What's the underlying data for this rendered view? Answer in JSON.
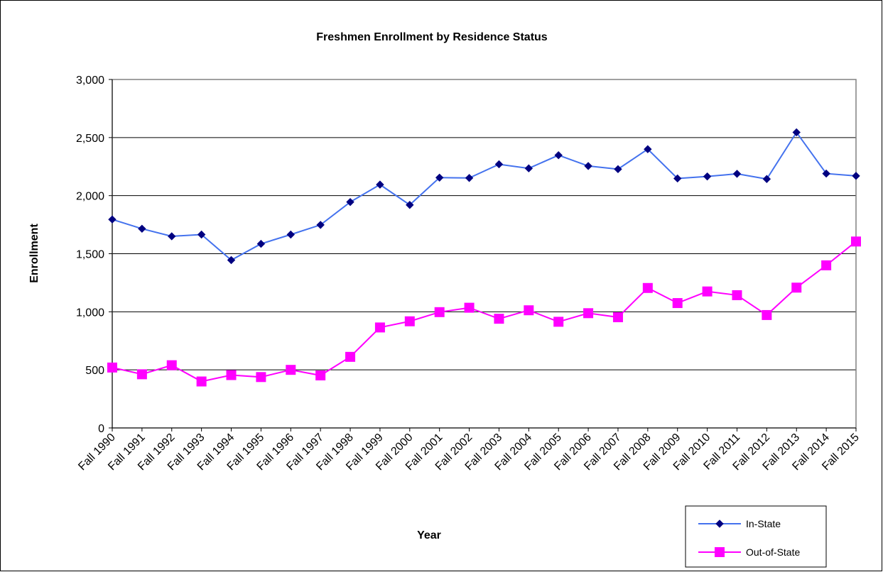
{
  "chart_data": {
    "type": "line",
    "title": "Freshmen Enrollment by Residence Status",
    "xlabel": "Year",
    "ylabel": "Enrollment",
    "ylim": [
      0,
      3000
    ],
    "yticks": [
      "0",
      "500",
      "1,000",
      "1,500",
      "2,000",
      "2,500",
      "3,000"
    ],
    "ytick_values": [
      0,
      500,
      1000,
      1500,
      2000,
      2500,
      3000
    ],
    "grid": true,
    "legend_position": "bottom-right",
    "categories": [
      "Fall 1990",
      "Fall 1991",
      "Fall 1992",
      "Fall 1993",
      "Fall 1994",
      "Fall 1995",
      "Fall 1996",
      "Fall 1997",
      "Fall 1998",
      "Fall 1999",
      "Fall 2000",
      "Fall 2001",
      "Fall 2002",
      "Fall 2003",
      "Fall 2004",
      "Fall 2005",
      "Fall 2006",
      "Fall 2007",
      "Fall 2008",
      "Fall 2009",
      "Fall 2010",
      "Fall 2011",
      "Fall 2012",
      "Fall 2013",
      "Fall 2014",
      "Fall 2015"
    ],
    "series": [
      {
        "name": "In-State",
        "color": "#4472ee",
        "marker": "diamond",
        "marker_color": "#000080",
        "values": [
          1795,
          1715,
          1650,
          1665,
          1445,
          1585,
          1665,
          1748,
          1945,
          2095,
          1920,
          2155,
          2152,
          2270,
          2235,
          2348,
          2255,
          2228,
          2400,
          2148,
          2165,
          2188,
          2143,
          2545,
          2190,
          2170
        ]
      },
      {
        "name": "Out-of-State",
        "color": "#ff00ff",
        "marker": "square",
        "marker_color": "#ff00ff",
        "values": [
          520,
          462,
          540,
          400,
          455,
          438,
          500,
          452,
          612,
          865,
          918,
          997,
          1035,
          940,
          1013,
          914,
          988,
          953,
          1205,
          1075,
          1175,
          1143,
          972,
          1208,
          1400,
          1605
        ]
      }
    ]
  }
}
